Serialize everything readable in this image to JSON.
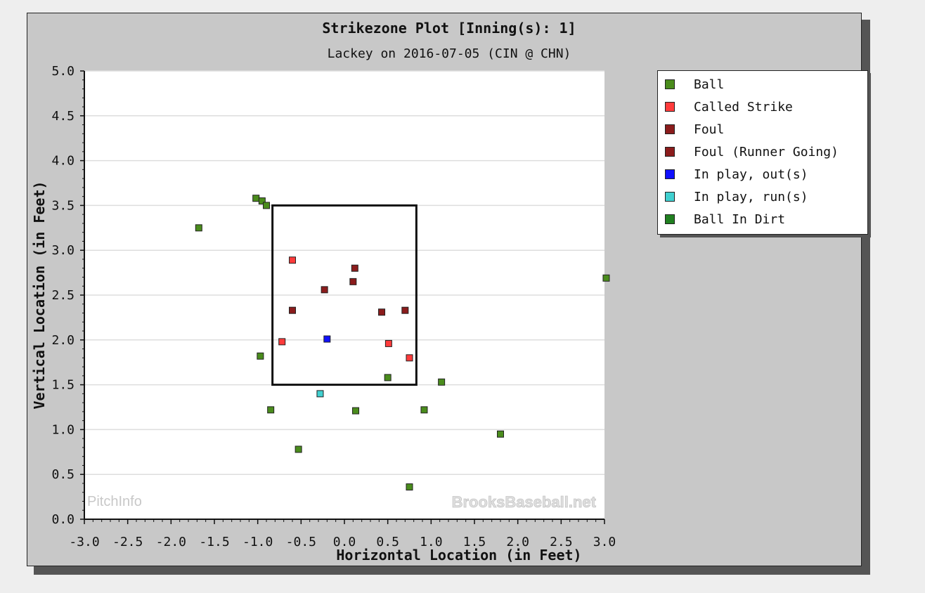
{
  "chart_data": {
    "type": "scatter",
    "title": "Strikezone Plot [Inning(s): 1]",
    "subtitle": "Lackey on 2016-07-05 (CIN @ CHN)",
    "xlabel": "Horizontal Location (in Feet)",
    "ylabel": "Vertical Location (in Feet)",
    "xlim": [
      -3.0,
      3.0
    ],
    "ylim": [
      0.0,
      5.0
    ],
    "xticks": [
      "-3.0",
      "-2.5",
      "-2.0",
      "-1.5",
      "-1.0",
      "-0.5",
      "0.0",
      "0.5",
      "1.0",
      "1.5",
      "2.0",
      "2.5",
      "3.0"
    ],
    "yticks": [
      "0.0",
      "0.5",
      "1.0",
      "1.5",
      "2.0",
      "2.5",
      "3.0",
      "3.5",
      "4.0",
      "4.5",
      "5.0"
    ],
    "grid": "horizontal",
    "legend_position": "right",
    "strike_zone": {
      "x": [
        -0.83,
        0.83
      ],
      "y": [
        1.5,
        3.5
      ]
    },
    "watermarks": [
      "PitchInfo",
      "BrooksBaseball.net"
    ],
    "series": [
      {
        "name": "Ball",
        "color": "#4a8c1c",
        "points": [
          [
            -1.02,
            3.58
          ],
          [
            -0.95,
            3.55
          ],
          [
            -0.9,
            3.5
          ],
          [
            -1.68,
            3.25
          ],
          [
            -0.97,
            1.82
          ],
          [
            -0.85,
            1.22
          ],
          [
            -0.53,
            0.78
          ],
          [
            0.13,
            1.21
          ],
          [
            0.5,
            1.58
          ],
          [
            0.92,
            1.22
          ],
          [
            1.12,
            1.53
          ],
          [
            0.75,
            0.36
          ],
          [
            1.8,
            0.95
          ],
          [
            3.02,
            2.69
          ]
        ]
      },
      {
        "name": "Called Strike",
        "color": "#ff3b3b",
        "points": [
          [
            -0.6,
            2.89
          ],
          [
            -0.72,
            1.98
          ],
          [
            0.51,
            1.96
          ],
          [
            0.75,
            1.8
          ]
        ]
      },
      {
        "name": "Foul",
        "color": "#8b1c1c",
        "points": [
          [
            -0.6,
            2.33
          ],
          [
            -0.23,
            2.56
          ],
          [
            0.12,
            2.8
          ],
          [
            0.1,
            2.65
          ],
          [
            0.43,
            2.31
          ],
          [
            0.7,
            2.33
          ]
        ]
      },
      {
        "name": "Foul (Runner Going)",
        "color": "#8b1c1c",
        "points": []
      },
      {
        "name": "In play, out(s)",
        "color": "#1010ff",
        "points": [
          [
            -0.2,
            2.01
          ]
        ]
      },
      {
        "name": "In play, run(s)",
        "color": "#40d0d0",
        "points": [
          [
            -0.28,
            1.4
          ]
        ]
      },
      {
        "name": "Ball In Dirt",
        "color": "#208020",
        "points": []
      }
    ]
  }
}
